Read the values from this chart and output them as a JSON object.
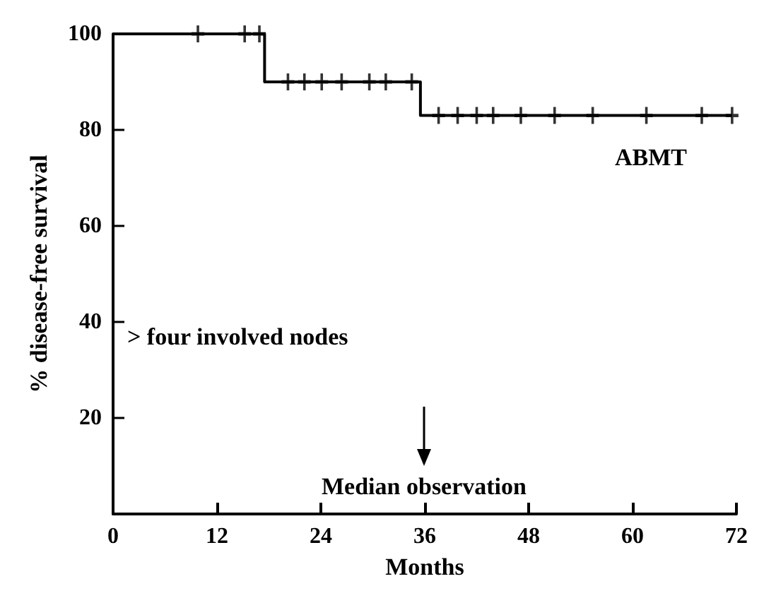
{
  "chart_data": {
    "type": "step",
    "xlabel": "Months",
    "ylabel": "% disease-free survival",
    "xlim": [
      0,
      72
    ],
    "xticks": [
      0,
      12,
      24,
      36,
      48,
      60,
      72
    ],
    "ylim": [
      0,
      100
    ],
    "yticks": [
      20,
      40,
      60,
      80,
      100
    ],
    "grid": false,
    "legend": "top right",
    "series": [
      {
        "name": "ABMT",
        "color": "#000000",
        "marker": "none",
        "x": [
          0,
          17.5,
          35.5,
          71.5
        ],
        "values": [
          100,
          90,
          83,
          83
        ]
      },
      {
        "type": "scatter",
        "color": "#000000",
        "marker": "cross",
        "x": [
          9.8,
          15.2,
          16.9,
          20.2,
          22.1,
          24.1,
          26.4,
          29.6,
          31.5,
          34.5,
          37.6,
          39.8,
          42.0,
          43.9,
          47.1,
          51.0,
          55.4,
          61.6,
          68.0,
          71.5
        ],
        "values": [
          100,
          100,
          100,
          90,
          90,
          90,
          90,
          90,
          90,
          90,
          83,
          83,
          83,
          83,
          83,
          83,
          83,
          83,
          83,
          83
        ]
      }
    ],
    "annotations": [
      "> four involved nodes",
      "Median observation"
    ]
  }
}
